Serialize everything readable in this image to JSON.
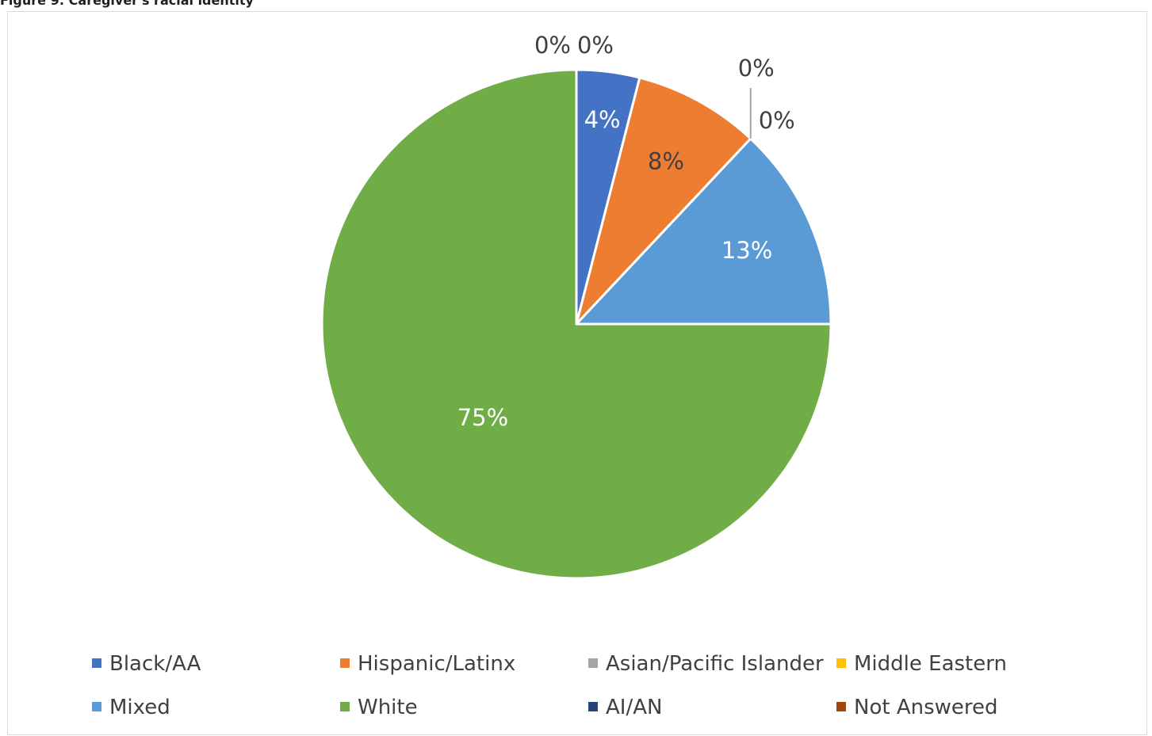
{
  "figure_caption": "Figure 9: Caregiver's racial identity",
  "chart_data": {
    "type": "pie",
    "title": "",
    "start_angle_deg": 0,
    "direction": "clockwise",
    "legend_position": "bottom",
    "slices": [
      {
        "name": "Black/AA",
        "value": 4,
        "label": "4%",
        "color": "#4472C4",
        "label_color": "#ffffff"
      },
      {
        "name": "Hispanic/Latinx",
        "value": 8,
        "label": "8%",
        "color": "#ED7D31",
        "label_color": "#404040"
      },
      {
        "name": "Asian/Pacific Islander",
        "value": 0,
        "label": "0%",
        "color": "#A5A5A5",
        "label_color": "#404040"
      },
      {
        "name": "Middle Eastern",
        "value": 0,
        "label": "0%",
        "color": "#FFC000",
        "label_color": "#404040"
      },
      {
        "name": "Mixed",
        "value": 13,
        "label": "13%",
        "color": "#5B9BD5",
        "label_color": "#ffffff"
      },
      {
        "name": "White",
        "value": 75,
        "label": "75%",
        "color": "#70AD47",
        "label_color": "#ffffff"
      },
      {
        "name": "AI/AN",
        "value": 0,
        "label": "0%",
        "color": "#264478",
        "label_color": "#404040"
      },
      {
        "name": "Not Answered",
        "value": 0,
        "label": "0%",
        "color": "#9E480E",
        "label_color": "#404040"
      }
    ]
  }
}
